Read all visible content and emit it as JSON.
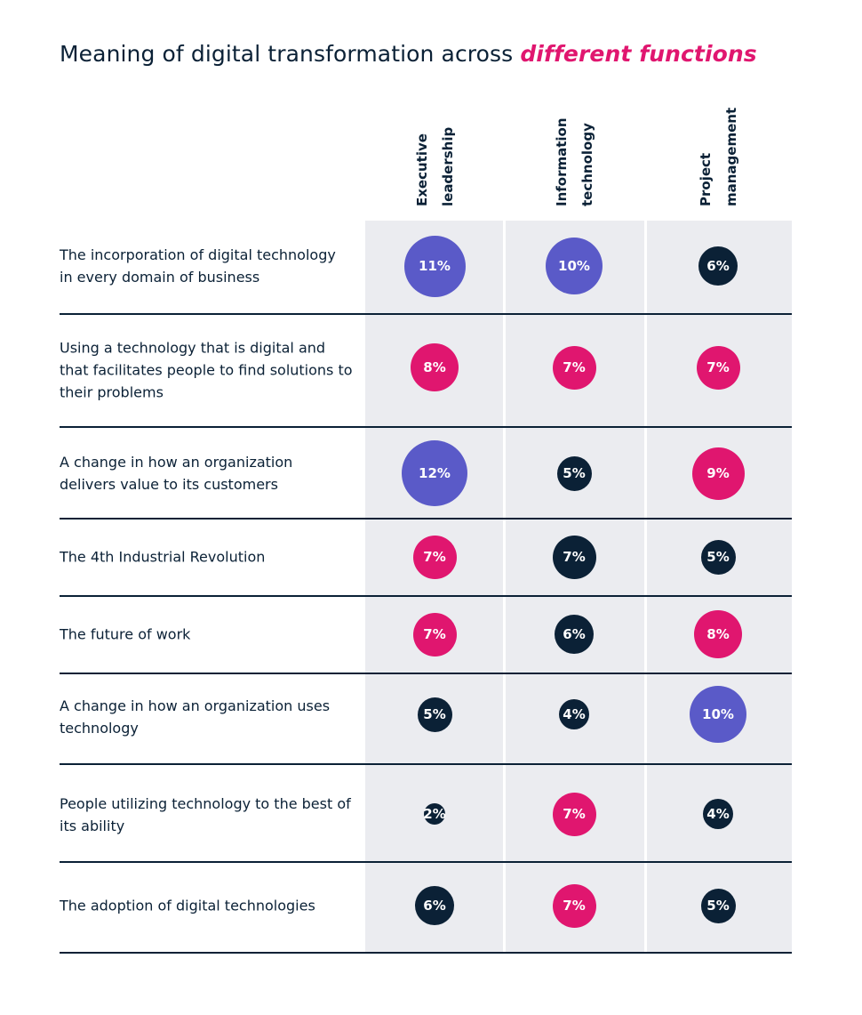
{
  "title": {
    "prefix": "Meaning of digital transformation across ",
    "highlight": "different functions"
  },
  "colors": {
    "dark": "#0b2136",
    "pink": "#e0166f",
    "purple": "#5a5ac8",
    "column_bg": "#ebecf0"
  },
  "chart_data": {
    "type": "bubble-matrix",
    "title": "Meaning of digital transformation across different functions",
    "columns": [
      "Executive leadership",
      "Information technology",
      "Project management"
    ],
    "rows": [
      "The incorporation of digital technology in every domain of business",
      "Using a technology that is digital and that facilitates people to find solutions to their problems",
      "A change in how an organization delivers value to its customers",
      "The 4th Industrial Revolution",
      "The future of work",
      "A change in how an organization uses technology",
      "People utilizing technology to the best of its ability",
      "The adoption of digital technologies"
    ],
    "unit": "%",
    "values": [
      [
        11,
        10,
        6
      ],
      [
        8,
        7,
        7
      ],
      [
        12,
        5,
        9
      ],
      [
        7,
        7,
        5
      ],
      [
        7,
        6,
        8
      ],
      [
        5,
        4,
        10
      ],
      [
        2,
        7,
        4
      ],
      [
        6,
        7,
        5
      ]
    ],
    "color_categories": [
      [
        "purple",
        "purple",
        "dark"
      ],
      [
        "pink",
        "pink",
        "pink"
      ],
      [
        "purple",
        "dark",
        "pink"
      ],
      [
        "pink",
        "dark",
        "dark"
      ],
      [
        "pink",
        "dark",
        "pink"
      ],
      [
        "dark",
        "dark",
        "purple"
      ],
      [
        "dark",
        "pink",
        "dark"
      ],
      [
        "dark",
        "pink",
        "dark"
      ]
    ]
  }
}
